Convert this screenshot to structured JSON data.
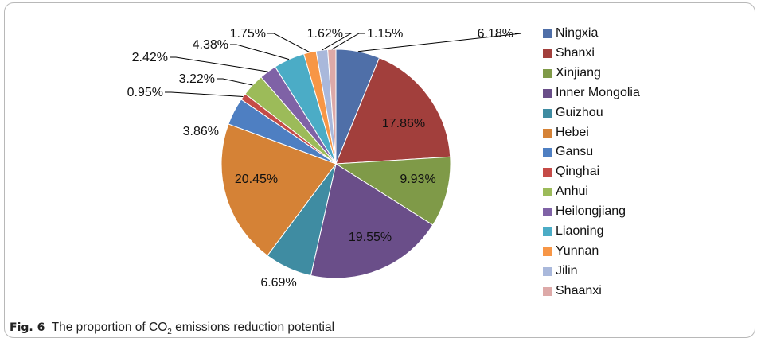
{
  "caption": {
    "fig_label": "Fig. 6",
    "text_before": "The proportion of CO",
    "subscript": "2",
    "text_after": " emissions reduction potential"
  },
  "chart_data": {
    "type": "pie",
    "title": "",
    "legend_position": "right",
    "start_angle_deg": 0,
    "direction": "clockwise",
    "slices": [
      {
        "name": "Ningxia",
        "value": 6.18,
        "label": "6.18%",
        "color": "#4F6FA8"
      },
      {
        "name": "Shanxi",
        "value": 17.86,
        "label": "17.86%",
        "color": "#A23F3C"
      },
      {
        "name": "Xinjiang",
        "value": 9.93,
        "label": "9.93%",
        "color": "#7F9A48"
      },
      {
        "name": "Inner Mongolia",
        "value": 19.55,
        "label": "19.55%",
        "color": "#6A4E89"
      },
      {
        "name": "Guizhou",
        "value": 6.69,
        "label": "6.69%",
        "color": "#3F8CA2"
      },
      {
        "name": "Hebei",
        "value": 20.45,
        "label": "20.45%",
        "color": "#D58236"
      },
      {
        "name": "Gansu",
        "value": 3.86,
        "label": "3.86%",
        "color": "#4E7FC2"
      },
      {
        "name": "Qinghai",
        "value": 0.95,
        "label": "0.95%",
        "color": "#C54B47"
      },
      {
        "name": "Anhui",
        "value": 3.22,
        "label": "3.22%",
        "color": "#9CBB59"
      },
      {
        "name": "Heilongjiang",
        "value": 2.42,
        "label": "2.42%",
        "color": "#7F62A6"
      },
      {
        "name": "Liaoning",
        "value": 4.38,
        "label": "4.38%",
        "color": "#4BACC6"
      },
      {
        "name": "Yunnan",
        "value": 1.75,
        "label": "1.75%",
        "color": "#F79646"
      },
      {
        "name": "Jilin",
        "value": 1.62,
        "label": "1.62%",
        "color": "#A9B8DB"
      },
      {
        "name": "Shaanxi",
        "value": 1.15,
        "label": "1.15%",
        "color": "#DDA9A8"
      }
    ]
  }
}
